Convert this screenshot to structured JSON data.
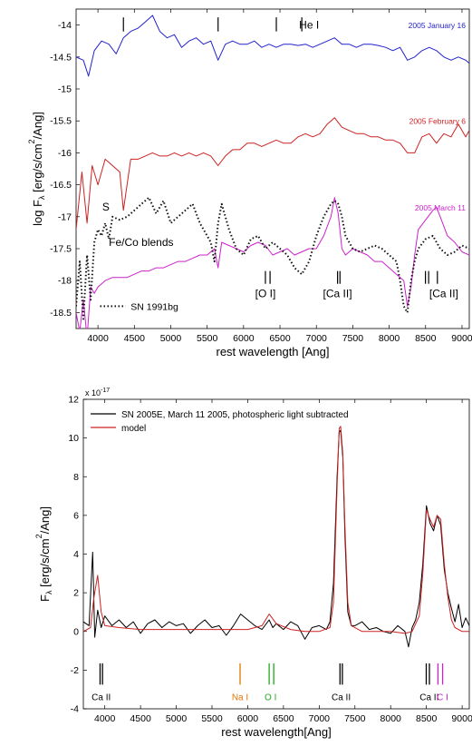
{
  "chart_data": [
    {
      "type": "line",
      "xlabel": "rest wavelength [Ang]",
      "ylabel": "log F",
      "ylabel_sub": "λ",
      "ylabel_units": " [erg/s/cm",
      "ylabel_sup": "2",
      "ylabel_tail": "/Ang]",
      "xlim": [
        3700,
        9100
      ],
      "ylim": [
        -18.75,
        -13.75
      ],
      "xticks": [
        4000,
        4500,
        5000,
        5500,
        6000,
        6500,
        7000,
        7500,
        8000,
        8500,
        9000
      ],
      "xtick_labels": [
        "4000",
        "4500",
        "5000",
        "5500",
        "6000",
        "6500",
        "7000",
        "7500",
        "8000",
        "8500",
        "9000"
      ],
      "yticks": [
        -14,
        -14.5,
        -15,
        -15.5,
        -16,
        -16.5,
        -17,
        -17.5,
        -18,
        -18.5
      ],
      "ytick_labels": [
        "-14",
        "-14.5",
        "-15",
        "-15.5",
        "-16",
        "-16.5",
        "-17",
        "-17.5",
        "-18",
        "-18.5"
      ],
      "series": [
        {
          "name": "2005 January 16",
          "color": "#2222cc",
          "style": "solid",
          "x": [
            3700,
            3800,
            3870,
            3950,
            4050,
            4150,
            4250,
            4350,
            4450,
            4550,
            4650,
            4750,
            4850,
            4950,
            5050,
            5150,
            5250,
            5350,
            5450,
            5550,
            5650,
            5750,
            5850,
            5950,
            6050,
            6150,
            6250,
            6350,
            6450,
            6550,
            6650,
            6750,
            6850,
            6950,
            7050,
            7150,
            7250,
            7350,
            7450,
            7550,
            7650,
            7750,
            7850,
            7950,
            8050,
            8150,
            8250,
            8350,
            8450,
            8550,
            8650,
            8750,
            8850,
            8950,
            9050,
            9100
          ],
          "y": [
            -14.5,
            -14.55,
            -14.8,
            -14.4,
            -14.25,
            -14.3,
            -14.45,
            -14.2,
            -14.1,
            -14.05,
            -13.95,
            -13.85,
            -14.1,
            -14.2,
            -14.15,
            -14.35,
            -14.25,
            -14.2,
            -14.3,
            -14.25,
            -14.55,
            -14.3,
            -14.25,
            -14.3,
            -14.3,
            -14.25,
            -14.35,
            -14.3,
            -14.35,
            -14.3,
            -14.3,
            -14.32,
            -14.3,
            -14.35,
            -14.3,
            -14.25,
            -14.2,
            -14.3,
            -14.3,
            -14.35,
            -14.3,
            -14.3,
            -14.32,
            -14.35,
            -14.4,
            -14.35,
            -14.55,
            -14.5,
            -14.4,
            -14.35,
            -14.4,
            -14.5,
            -14.55,
            -14.5,
            -14.55,
            -14.6
          ]
        },
        {
          "name": "2005 February 6",
          "color": "#cc2222",
          "style": "solid",
          "x": [
            3700,
            3780,
            3850,
            3920,
            4000,
            4100,
            4200,
            4300,
            4350,
            4450,
            4550,
            4650,
            4750,
            4850,
            4950,
            5050,
            5150,
            5250,
            5350,
            5450,
            5550,
            5650,
            5750,
            5850,
            5950,
            6050,
            6150,
            6250,
            6350,
            6450,
            6550,
            6650,
            6750,
            6850,
            6950,
            7050,
            7150,
            7250,
            7350,
            7450,
            7550,
            7650,
            7750,
            7850,
            7950,
            8050,
            8150,
            8250,
            8350,
            8450,
            8550,
            8650,
            8750,
            8850,
            8950,
            9050,
            9100
          ],
          "y": [
            -17.2,
            -16.3,
            -17.1,
            -16.2,
            -16.5,
            -16.1,
            -16.2,
            -16.3,
            -16.9,
            -16.1,
            -16.1,
            -16.05,
            -16.0,
            -16.05,
            -16.05,
            -16.0,
            -16.05,
            -16.0,
            -16.05,
            -16.0,
            -16.05,
            -16.2,
            -16.05,
            -15.95,
            -15.95,
            -15.85,
            -15.85,
            -15.9,
            -15.85,
            -15.8,
            -15.85,
            -15.85,
            -15.75,
            -15.7,
            -15.75,
            -15.7,
            -15.55,
            -15.45,
            -15.6,
            -15.65,
            -15.7,
            -15.7,
            -15.75,
            -15.75,
            -15.8,
            -15.8,
            -15.85,
            -16.0,
            -16.0,
            -15.75,
            -15.7,
            -15.85,
            -15.7,
            -15.75,
            -15.55,
            -15.75,
            -15.65
          ]
        },
        {
          "name": "2005 March 11",
          "color": "#cc22cc",
          "style": "solid",
          "x": [
            3700,
            3750,
            3800,
            3850,
            3900,
            3950,
            4000,
            4100,
            4200,
            4300,
            4400,
            4500,
            4600,
            4700,
            4800,
            4900,
            5000,
            5100,
            5200,
            5300,
            5400,
            5500,
            5600,
            5650,
            5700,
            5800,
            5900,
            6000,
            6100,
            6200,
            6300,
            6400,
            6500,
            6600,
            6700,
            6800,
            6900,
            7000,
            7100,
            7200,
            7250,
            7300,
            7350,
            7400,
            7500,
            7600,
            7700,
            7800,
            7900,
            8000,
            8100,
            8200,
            8250,
            8300,
            8350,
            8400,
            8500,
            8600,
            8650,
            8700,
            8800,
            8900,
            9000,
            9100
          ],
          "y": [
            -18.5,
            -18.8,
            -18.3,
            -18.9,
            -18.1,
            -18.2,
            -18.1,
            -18.0,
            -17.95,
            -17.95,
            -17.95,
            -17.9,
            -17.85,
            -17.85,
            -17.8,
            -17.8,
            -17.75,
            -17.7,
            -17.7,
            -17.65,
            -17.6,
            -17.6,
            -17.5,
            -17.8,
            -17.4,
            -17.45,
            -17.5,
            -17.55,
            -17.45,
            -17.4,
            -17.45,
            -17.6,
            -17.55,
            -17.5,
            -17.6,
            -17.55,
            -17.5,
            -17.5,
            -17.3,
            -17.0,
            -16.7,
            -16.95,
            -17.5,
            -17.6,
            -17.5,
            -17.55,
            -17.6,
            -17.7,
            -17.7,
            -17.8,
            -17.9,
            -18.0,
            -18.4,
            -18.1,
            -17.6,
            -17.2,
            -17.05,
            -16.9,
            -16.85,
            -17.0,
            -17.3,
            -17.4,
            -17.55,
            -17.6
          ]
        },
        {
          "name": "SN 1991bg",
          "color": "#111111",
          "style": "dotted",
          "x": [
            3700,
            3750,
            3800,
            3850,
            3900,
            3950,
            4000,
            4050,
            4100,
            4150,
            4200,
            4300,
            4400,
            4500,
            4600,
            4700,
            4800,
            4900,
            5000,
            5100,
            5200,
            5300,
            5400,
            5500,
            5550,
            5600,
            5650,
            5700,
            5800,
            5900,
            6000,
            6100,
            6200,
            6300,
            6400,
            6500,
            6600,
            6700,
            6800,
            6900,
            7000,
            7100,
            7200,
            7250,
            7300,
            7350,
            7400,
            7500,
            7600,
            7700,
            7800,
            7900,
            8000,
            8100,
            8150,
            8200,
            8250,
            8300,
            8350,
            8400,
            8500,
            8600,
            8700,
            8800,
            8900,
            9000,
            9100
          ],
          "y": [
            -18.4,
            -17.7,
            -18.6,
            -17.6,
            -18.3,
            -17.4,
            -17.2,
            -17.3,
            -17.1,
            -17.35,
            -17.0,
            -17.05,
            -17.0,
            -16.9,
            -16.8,
            -16.7,
            -16.95,
            -16.75,
            -17.1,
            -17.0,
            -16.9,
            -16.8,
            -17.1,
            -17.3,
            -17.4,
            -17.7,
            -17.1,
            -16.8,
            -17.2,
            -17.5,
            -17.6,
            -17.35,
            -17.3,
            -17.5,
            -17.4,
            -17.5,
            -17.6,
            -17.8,
            -17.9,
            -17.7,
            -17.3,
            -17.0,
            -16.8,
            -16.75,
            -16.8,
            -17.0,
            -17.3,
            -17.5,
            -17.55,
            -17.5,
            -17.45,
            -17.5,
            -17.6,
            -17.7,
            -18.0,
            -18.4,
            -18.5,
            -18.0,
            -17.7,
            -17.5,
            -17.35,
            -17.3,
            -17.5,
            -17.6,
            -17.55,
            -17.45,
            -17.5
          ]
        }
      ],
      "annotations": [
        {
          "text": "He I",
          "x": 6900,
          "y": -14.0,
          "color": "#000000"
        },
        {
          "text": "S",
          "x": 4060,
          "y": -16.85,
          "color": "#000000"
        },
        {
          "text": "Fe/Co blends",
          "x": 4150,
          "y": -17.4,
          "color": "#000000"
        },
        {
          "text": "[O I]",
          "x": 6300,
          "y": -18.2,
          "color": "#000000"
        },
        {
          "text": "[Ca II]",
          "x": 7290,
          "y": -18.2,
          "color": "#000000"
        },
        {
          "text": "[Ca II]",
          "x": 8750,
          "y": -18.2,
          "color": "#000000"
        }
      ],
      "line_markers": [
        {
          "x": 4350,
          "y_top": -13.88,
          "y_bottom": -14.1
        },
        {
          "x": 5650,
          "y_top": -13.88,
          "y_bottom": -14.1
        },
        {
          "x": 6450,
          "y_top": -13.88,
          "y_bottom": -14.1
        },
        {
          "x": 6800,
          "y_top": -13.88,
          "y_bottom": -14.1
        },
        {
          "x": 6300,
          "y_top": -17.85,
          "y_bottom": -18.05
        },
        {
          "x": 6364,
          "y_top": -17.85,
          "y_bottom": -18.05
        },
        {
          "x": 7291,
          "y_top": -17.85,
          "y_bottom": -18.05
        },
        {
          "x": 7324,
          "y_top": -17.85,
          "y_bottom": -18.05
        },
        {
          "x": 8498,
          "y_top": -17.85,
          "y_bottom": -18.05
        },
        {
          "x": 8542,
          "y_top": -17.85,
          "y_bottom": -18.05
        },
        {
          "x": 8662,
          "y_top": -17.85,
          "y_bottom": -18.05
        }
      ]
    },
    {
      "type": "line",
      "xlabel": "rest wavelength[Ang]",
      "ylabel": "F",
      "ylabel_sub": "λ",
      "ylabel_units": " [erg/s/cm",
      "ylabel_sup": "2",
      "ylabel_tail": "/Ang]",
      "exponent_label": "x 10",
      "exponent_power": "-17",
      "xlim": [
        3700,
        9100
      ],
      "ylim": [
        -4,
        12
      ],
      "xticks": [
        4000,
        4500,
        5000,
        5500,
        6000,
        6500,
        7000,
        7500,
        8000,
        8500,
        9000
      ],
      "xtick_labels": [
        "4000",
        "4500",
        "5000",
        "5500",
        "6000",
        "6500",
        "7000",
        "7500",
        "8000",
        "8500",
        "9000"
      ],
      "yticks": [
        -4,
        -2,
        0,
        2,
        4,
        6,
        8,
        10,
        12
      ],
      "ytick_labels": [
        "-4",
        "-2",
        "0",
        "2",
        "4",
        "6",
        "8",
        "10",
        "12"
      ],
      "legend_placement": "top-left",
      "series": [
        {
          "name": "SN 2005E, March 11 2005, photospheric light subtracted",
          "color": "#000000",
          "style": "solid",
          "x": [
            3700,
            3780,
            3830,
            3860,
            3900,
            3950,
            4000,
            4100,
            4200,
            4300,
            4400,
            4500,
            4600,
            4700,
            4800,
            4900,
            5000,
            5100,
            5200,
            5300,
            5400,
            5500,
            5600,
            5700,
            5800,
            5900,
            6000,
            6100,
            6200,
            6300,
            6350,
            6400,
            6500,
            6600,
            6700,
            6800,
            6900,
            7000,
            7100,
            7150,
            7200,
            7250,
            7280,
            7300,
            7330,
            7360,
            7400,
            7450,
            7500,
            7600,
            7700,
            7800,
            7900,
            8000,
            8100,
            8200,
            8250,
            8300,
            8350,
            8400,
            8450,
            8500,
            8550,
            8600,
            8650,
            8700,
            8750,
            8800,
            8850,
            8900,
            8950,
            9000,
            9050,
            9100
          ],
          "y": [
            0.5,
            0.3,
            4.1,
            -0.3,
            1.1,
            0.2,
            0.8,
            0.3,
            0.6,
            0.2,
            0.5,
            -0.1,
            0.4,
            0.6,
            0.2,
            0.5,
            0.3,
            0.4,
            -0.1,
            0.3,
            0.6,
            0.2,
            0.3,
            -0.2,
            0.3,
            0.9,
            0.6,
            0.3,
            0.1,
            0.6,
            0.2,
            0.4,
            0.1,
            0.5,
            0.3,
            -0.4,
            0.2,
            0.3,
            0.1,
            0.5,
            2.5,
            8.0,
            10.3,
            10.4,
            9.0,
            5.0,
            1.0,
            0.3,
            0.3,
            0.5,
            0.1,
            0.2,
            0.0,
            -0.1,
            0.3,
            0.0,
            -0.8,
            0.2,
            0.6,
            1.5,
            3.5,
            6.5,
            5.6,
            5.2,
            6.0,
            5.5,
            3.2,
            2.0,
            1.2,
            0.5,
            1.4,
            0.2,
            0.7,
            0.3
          ]
        },
        {
          "name": "model",
          "color": "#cc2222",
          "style": "solid",
          "x": [
            3700,
            3800,
            3850,
            3900,
            3950,
            4000,
            4200,
            4500,
            5000,
            5500,
            6000,
            6200,
            6300,
            6400,
            6600,
            6800,
            7000,
            7150,
            7200,
            7250,
            7280,
            7300,
            7330,
            7360,
            7400,
            7450,
            7600,
            7800,
            8000,
            8200,
            8300,
            8400,
            8450,
            8500,
            8550,
            8600,
            8650,
            8700,
            8750,
            8800,
            8850,
            8900,
            9000,
            9100
          ],
          "y": [
            0.0,
            0.2,
            1.8,
            2.9,
            1.0,
            0.3,
            0.2,
            0.1,
            0.1,
            0.1,
            0.1,
            0.3,
            0.9,
            0.4,
            0.1,
            0.0,
            0.0,
            0.2,
            1.5,
            7.5,
            10.5,
            10.6,
            9.2,
            5.5,
            1.5,
            0.3,
            0.0,
            0.0,
            0.0,
            -0.1,
            0.0,
            0.8,
            3.0,
            6.3,
            5.8,
            5.4,
            6.0,
            5.8,
            3.5,
            1.8,
            0.6,
            0.2,
            0.0,
            0.0
          ]
        }
      ],
      "line_ids": [
        {
          "label": "Ca II",
          "x": 3950,
          "color": "#000000",
          "ticks": [
            3934,
            3968
          ]
        },
        {
          "label": "Na I",
          "x": 5893,
          "color": "#dd7700",
          "ticks": [
            5893
          ]
        },
        {
          "label": "O I",
          "x": 6320,
          "color": "#22aa22",
          "ticks": [
            6300,
            6364
          ]
        },
        {
          "label": "Ca II",
          "x": 7307,
          "color": "#000000",
          "ticks": [
            7291,
            7324
          ]
        },
        {
          "label": "Ca II",
          "x": 8540,
          "color": "#000000",
          "ticks": [
            8498,
            8542
          ]
        },
        {
          "label": "C I",
          "x": 8727,
          "color": "#cc22cc",
          "ticks": [
            8662,
            8727
          ]
        }
      ]
    }
  ]
}
